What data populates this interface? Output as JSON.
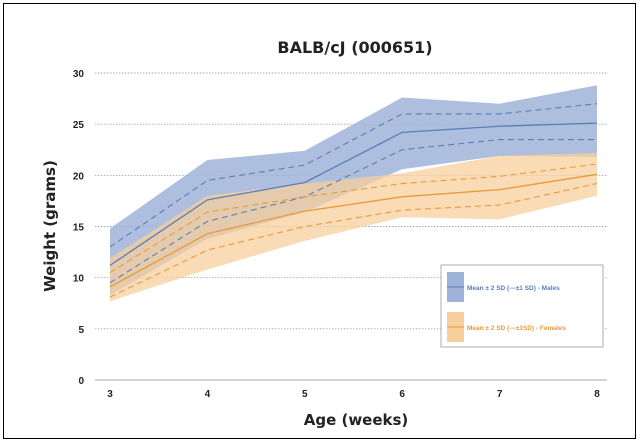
{
  "chart_data": {
    "type": "area",
    "title": "BALB/cJ (000651)",
    "xlabel": "Age (weeks)",
    "ylabel": "Weight (grams)",
    "x": [
      3,
      4,
      5,
      6,
      7,
      8
    ],
    "xlim": [
      3,
      8
    ],
    "ylim": [
      0,
      30
    ],
    "yticks": [
      0,
      5,
      10,
      15,
      20,
      25,
      30
    ],
    "grid": true,
    "legend_position": "lower-right",
    "series": [
      {
        "name": "Mean ± 2 SD (---±1 SD) - Males",
        "color_line": "#5b7fb5",
        "color_band": "#9fb3d8",
        "mean": [
          11.2,
          17.6,
          19.3,
          24.2,
          24.8,
          25.1
        ],
        "plus1sd": [
          13.0,
          19.5,
          21.0,
          26.0,
          26.0,
          27.0
        ],
        "minus1sd": [
          9.5,
          15.5,
          17.9,
          22.5,
          23.5,
          23.5
        ],
        "plus2sd": [
          14.8,
          21.5,
          22.4,
          27.6,
          27.0,
          28.8
        ],
        "minus2sd": [
          8.3,
          13.8,
          16.4,
          20.6,
          21.9,
          21.8
        ]
      },
      {
        "name": "Mean ± 2 SD (---±1SD) - Females",
        "color_line": "#e89a3c",
        "color_band": "#f7cf9c",
        "mean": [
          9.1,
          14.3,
          16.5,
          17.9,
          18.6,
          20.1
        ],
        "plus1sd": [
          10.5,
          16.4,
          17.9,
          19.2,
          19.9,
          21.1
        ],
        "minus1sd": [
          8.1,
          12.7,
          15.0,
          16.6,
          17.1,
          19.2
        ],
        "plus2sd": [
          11.9,
          18.0,
          19.2,
          20.2,
          21.9,
          22.2
        ],
        "minus2sd": [
          7.7,
          10.8,
          13.6,
          15.9,
          15.7,
          18.0
        ]
      }
    ]
  }
}
